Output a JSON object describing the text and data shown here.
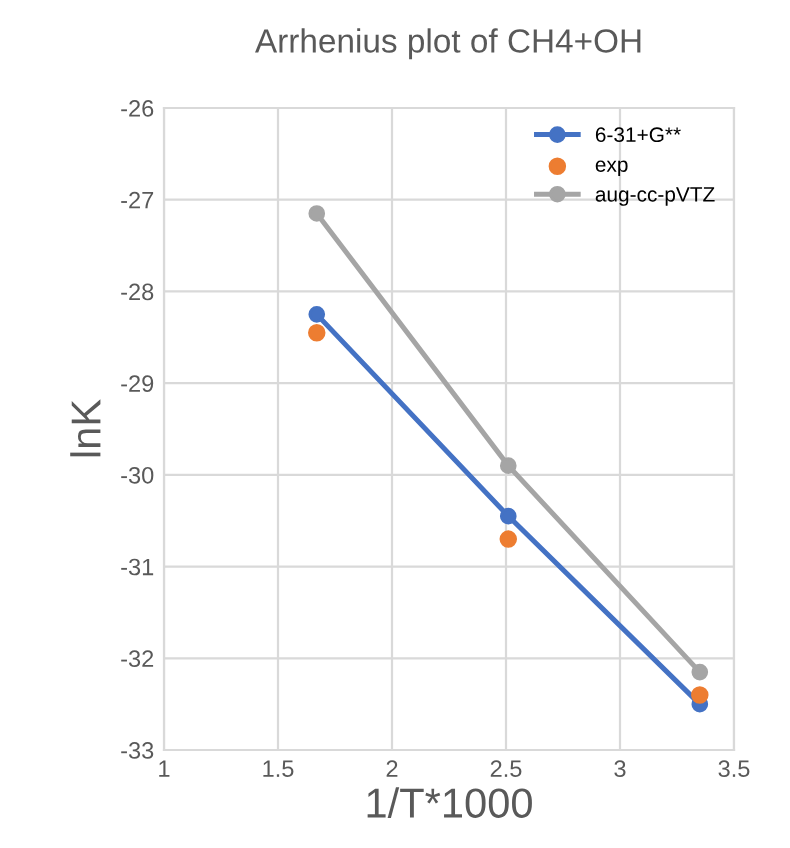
{
  "chart_data": {
    "type": "line",
    "title": "Arrhenius plot of CH4+OH",
    "xlabel": "1/T*1000",
    "ylabel": "lnK",
    "x": [
      1.67,
      2.51,
      3.35
    ],
    "series": [
      {
        "name": "6-31+G**",
        "color": "#4472c4",
        "values": [
          -28.25,
          -30.45,
          -32.5
        ],
        "marker": "circle"
      },
      {
        "name": "exp",
        "color": "#ed7d31",
        "values": [
          -28.45,
          -30.7,
          -32.4
        ],
        "type": "scatter",
        "marker": "circle"
      },
      {
        "name": "aug-cc-pVTZ",
        "color": "#a5a5a5",
        "values": [
          -27.15,
          -29.9,
          -32.15
        ],
        "marker": "circle"
      }
    ],
    "xlim": [
      1,
      3.5
    ],
    "xticks": [
      1,
      1.5,
      2,
      2.5,
      3,
      3.5
    ],
    "ylim": [
      -33,
      -26
    ],
    "yticks": [
      -33,
      -32,
      -31,
      -30,
      -29,
      -28,
      -27,
      -26
    ],
    "grid": true,
    "legend": "top right"
  }
}
